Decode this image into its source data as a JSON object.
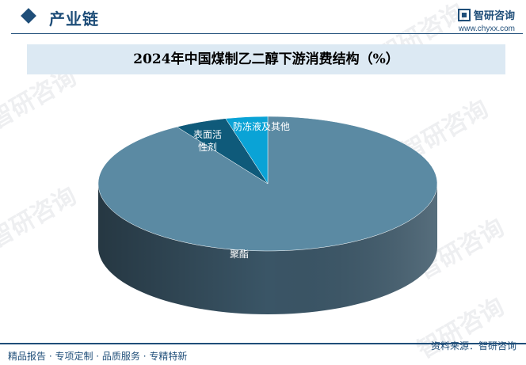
{
  "header": {
    "section_title": "产业链",
    "brand_name": "智研咨询",
    "brand_url": "www.chyxx.com"
  },
  "chart_data": {
    "type": "pie",
    "title": "2024年中国煤制乙二醇下游消费结构（%）",
    "slices": [
      {
        "label": "聚酯",
        "value": 91,
        "color": "#5b8aa3",
        "side_color": "#3a5566"
      },
      {
        "label": "表面活性剂",
        "label_lines": [
          "表面活",
          "性剂"
        ],
        "value": 5,
        "color": "#0f5a7a",
        "side_color": "#083548"
      },
      {
        "label": "防冻液及其他",
        "value": 4,
        "color": "#0aa3d6",
        "side_color": "#066a8c"
      }
    ]
  },
  "footer": {
    "tagline": "精品报告 · 专项定制 · 品质服务 · 专精特新",
    "source": "资料来源：智研咨询"
  },
  "watermark": {
    "text": "智研咨询"
  }
}
